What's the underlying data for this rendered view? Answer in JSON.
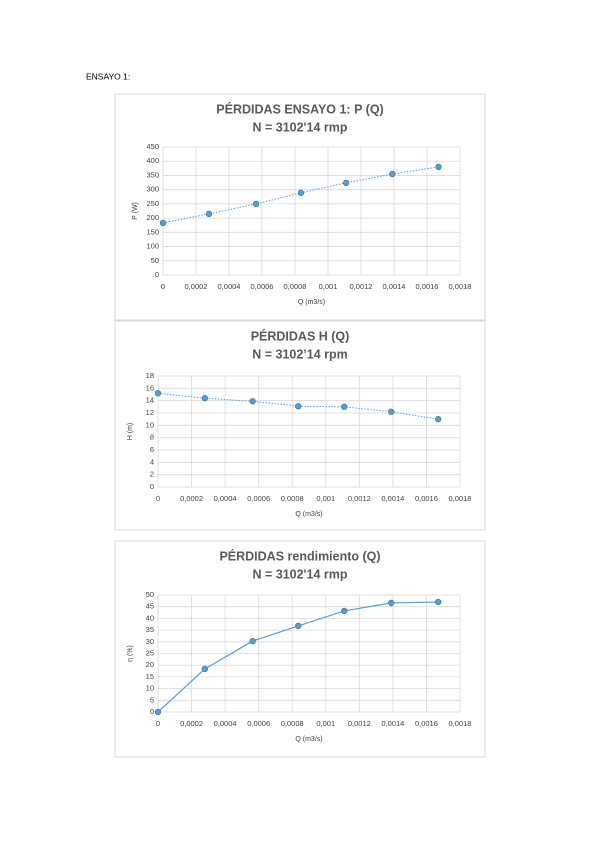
{
  "heading": "ENSAYO 1:",
  "chart_data": [
    {
      "type": "line",
      "title": "PÉRDIDAS ENSAYO 1: P (Q)",
      "subtitle": "N = 3102'14 rmp",
      "x_label": "Q (m3/s)",
      "y_label": "P (W)",
      "color": "#5b9bd5",
      "line_style": "dotted",
      "grid": true,
      "x": [
        0,
        0.000279,
        0.000564,
        0.000836,
        0.00111,
        0.00139,
        0.00167
      ],
      "values": [
        183,
        215,
        250,
        289,
        324,
        355,
        380
      ],
      "xlim": [
        0,
        0.0018
      ],
      "ylim": [
        0,
        450
      ],
      "xticks": [
        0,
        {
          "value": 0.0002,
          "label": "0,0002"
        },
        {
          "value": 0.0004,
          "label": "0,0004"
        },
        {
          "value": 0.0006,
          "label": "0,0006"
        },
        {
          "value": 0.0008,
          "label": "0,0008"
        },
        {
          "value": 0.001,
          "label": "0,001"
        },
        {
          "value": 0.0012,
          "label": "0,0012"
        },
        {
          "value": 0.0014,
          "label": "0,0014"
        },
        {
          "value": 0.0016,
          "label": "0,0016"
        },
        {
          "value": 0.0018,
          "label": "0,0018"
        }
      ],
      "yticks": [
        0,
        50,
        100,
        150,
        200,
        250,
        300,
        350,
        400,
        450
      ]
    },
    {
      "type": "line",
      "title": "PÉRDIDAS H (Q)",
      "subtitle": "N = 3102’14 rpm",
      "x_label": "Q (m3/s)",
      "y_label": "H (m)",
      "color": "#5b9bd5",
      "line_style": "dotted",
      "grid": true,
      "x": [
        0,
        0.000279,
        0.000564,
        0.000836,
        0.00111,
        0.00139,
        0.00167
      ],
      "values": [
        15.2,
        14.4,
        13.9,
        13.1,
        13.0,
        12.2,
        11.0
      ],
      "xlim": [
        0,
        0.0018
      ],
      "ylim": [
        0,
        18
      ],
      "xticks": [
        0,
        {
          "value": 0.0002,
          "label": "0,0002"
        },
        {
          "value": 0.0004,
          "label": "0,0004"
        },
        {
          "value": 0.0006,
          "label": "0,0006"
        },
        {
          "value": 0.0008,
          "label": "0,0008"
        },
        {
          "value": 0.001,
          "label": "0,001"
        },
        {
          "value": 0.0012,
          "label": "0,0012"
        },
        {
          "value": 0.0014,
          "label": "0,0014"
        },
        {
          "value": 0.0016,
          "label": "0,0016"
        },
        {
          "value": 0.0018,
          "label": "0,0018"
        }
      ],
      "yticks": [
        0,
        2,
        4,
        6,
        8,
        10,
        12,
        14,
        16,
        18
      ]
    },
    {
      "type": "line",
      "title": "PÉRDIDAS rendimiento (Q)",
      "subtitle": "N = 3102'14 rmp",
      "x_label": "Q (m3/s)",
      "y_label": "η (%)",
      "color": "#5b9bd5",
      "line_style": "solid",
      "grid": true,
      "x": [
        0,
        0.000279,
        0.000564,
        0.000836,
        0.00111,
        0.00139,
        0.00167
      ],
      "values": [
        0,
        18.4,
        30.3,
        36.8,
        43.2,
        46.6,
        47.0
      ],
      "xlim": [
        0,
        0.0018
      ],
      "ylim": [
        0,
        50
      ],
      "xticks": [
        0,
        {
          "value": 0.0002,
          "label": "0,0002"
        },
        {
          "value": 0.0004,
          "label": "0,0004"
        },
        {
          "value": 0.0006,
          "label": "0,0006"
        },
        {
          "value": 0.0008,
          "label": "0,0008"
        },
        {
          "value": 0.001,
          "label": "0,001"
        },
        {
          "value": 0.0012,
          "label": "0,0012"
        },
        {
          "value": 0.0014,
          "label": "0,0014"
        },
        {
          "value": 0.0016,
          "label": "0,0016"
        },
        {
          "value": 0.0018,
          "label": "0,0018"
        }
      ],
      "yticks": [
        0,
        5,
        10,
        15,
        20,
        25,
        30,
        35,
        40,
        45,
        50
      ]
    }
  ]
}
